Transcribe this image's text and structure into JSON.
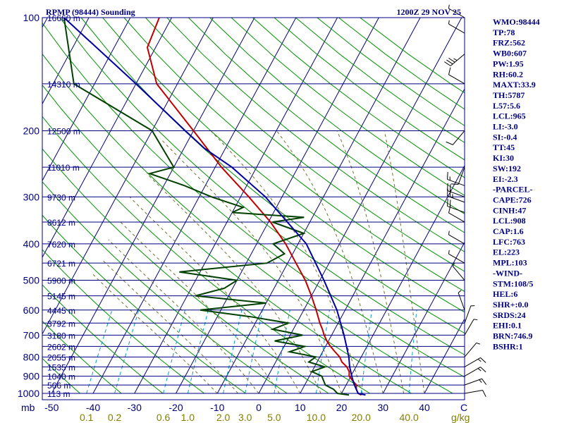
{
  "header": {
    "station": "RPMP (98444) Sounding",
    "time": "1200Z 29 NOV 25"
  },
  "chart_data": {
    "type": "skew-t",
    "pressure_levels": [
      100,
      200,
      300,
      400,
      500,
      600,
      700,
      800,
      900,
      1000
    ],
    "pressure_label_texts": [
      "100",
      "200",
      "300",
      "400",
      "500",
      "600",
      "700",
      "800",
      "900",
      "1000"
    ],
    "height_labels": [
      {
        "p": 100,
        "text": "16660 m"
      },
      {
        "p": 150,
        "text": "14310 m"
      },
      {
        "p": 200,
        "text": "12500 m"
      },
      {
        "p": 250,
        "text": "11010 m"
      },
      {
        "p": 300,
        "text": "9730 m"
      },
      {
        "p": 350,
        "text": "8612 m"
      },
      {
        "p": 400,
        "text": "7620 m"
      },
      {
        "p": 450,
        "text": "6721 m"
      },
      {
        "p": 500,
        "text": "5900 m"
      },
      {
        "p": 550,
        "text": "5145 m"
      },
      {
        "p": 600,
        "text": "4445 m"
      },
      {
        "p": 650,
        "text": "3792 m"
      },
      {
        "p": 700,
        "text": "3180 m"
      },
      {
        "p": 750,
        "text": "2602 m"
      },
      {
        "p": 800,
        "text": "2055 m"
      },
      {
        "p": 850,
        "text": "1535 m"
      },
      {
        "p": 900,
        "text": "1040 m"
      },
      {
        "p": 950,
        "text": "566 m"
      },
      {
        "p": 1000,
        "text": "113 m"
      }
    ],
    "x_axis_label": "mb",
    "temperature_ticks": [
      -50,
      -40,
      -30,
      -20,
      -10,
      0,
      10,
      20,
      30,
      40
    ],
    "temperature_tick_texts": [
      "-50",
      "-40",
      "-30",
      "-20",
      "-10",
      "0",
      "10",
      "20",
      "30",
      "40"
    ],
    "celsius_label": "C",
    "mixing_ratio_labels": [
      "0.1",
      "0.2",
      "0.6",
      "1.0",
      "2.0",
      "3.0",
      "5.0",
      "10.0",
      "20.0",
      "40.0"
    ],
    "mixing_ratio_unit": "g/kg",
    "series": [
      {
        "name": "temperature",
        "color": "#c00000",
        "points": [
          [
            1010,
            25
          ],
          [
            1000,
            24
          ],
          [
            975,
            23
          ],
          [
            950,
            22.5
          ],
          [
            925,
            21
          ],
          [
            900,
            19.6
          ],
          [
            875,
            19
          ],
          [
            850,
            17.8
          ],
          [
            825,
            16
          ],
          [
            800,
            14.8
          ],
          [
            775,
            13
          ],
          [
            750,
            11.2
          ],
          [
            725,
            9.6
          ],
          [
            700,
            8.2
          ],
          [
            675,
            7
          ],
          [
            650,
            5.6
          ],
          [
            600,
            3
          ],
          [
            550,
            0
          ],
          [
            500,
            -3.5
          ],
          [
            450,
            -8
          ],
          [
            400,
            -13
          ],
          [
            350,
            -19.5
          ],
          [
            300,
            -28
          ],
          [
            250,
            -38.5
          ],
          [
            200,
            -50
          ],
          [
            150,
            -65
          ],
          [
            120,
            -72
          ],
          [
            100,
            -73
          ]
        ]
      },
      {
        "name": "dewpoint",
        "color": "#004000",
        "points": [
          [
            1010,
            22
          ],
          [
            1000,
            19
          ],
          [
            975,
            17.5
          ],
          [
            950,
            15
          ],
          [
            925,
            14
          ],
          [
            900,
            13
          ],
          [
            875,
            10
          ],
          [
            850,
            12.5
          ],
          [
            825,
            8
          ],
          [
            800,
            9
          ],
          [
            775,
            2
          ],
          [
            750,
            5
          ],
          [
            725,
            -3
          ],
          [
            700,
            3
          ],
          [
            675,
            -5
          ],
          [
            650,
            -2
          ],
          [
            625,
            -12
          ],
          [
            600,
            -25
          ],
          [
            575,
            -10
          ],
          [
            550,
            -28
          ],
          [
            525,
            -22
          ],
          [
            500,
            -20
          ],
          [
            475,
            -35
          ],
          [
            450,
            -15
          ],
          [
            425,
            -12
          ],
          [
            400,
            -16
          ],
          [
            375,
            -10
          ],
          [
            350,
            -19
          ],
          [
            340,
            -12
          ],
          [
            330,
            -30
          ],
          [
            320,
            -28
          ],
          [
            300,
            -37
          ],
          [
            280,
            -45
          ],
          [
            260,
            -55
          ],
          [
            250,
            -50
          ],
          [
            200,
            -60
          ],
          [
            150,
            -85
          ],
          [
            100,
            -96
          ]
        ]
      },
      {
        "name": "parcel",
        "color": "#0000a0",
        "points": [
          [
            1010,
            26
          ],
          [
            1000,
            24
          ],
          [
            950,
            22
          ],
          [
            908,
            20.5
          ],
          [
            850,
            18.5
          ],
          [
            800,
            17
          ],
          [
            700,
            13
          ],
          [
            600,
            8
          ],
          [
            500,
            1
          ],
          [
            400,
            -8
          ],
          [
            300,
            -24
          ],
          [
            250,
            -36
          ],
          [
            223,
            -45
          ],
          [
            200,
            -52
          ],
          [
            150,
            -70
          ],
          [
            100,
            -96
          ]
        ]
      }
    ],
    "wind_barbs": [
      {
        "p": 1000,
        "dir": 80,
        "spd": 10
      },
      {
        "p": 950,
        "dir": 70,
        "spd": 15
      },
      {
        "p": 900,
        "dir": 60,
        "spd": 15
      },
      {
        "p": 850,
        "dir": 60,
        "spd": 15
      },
      {
        "p": 800,
        "dir": 40,
        "spd": 5
      },
      {
        "p": 700,
        "dir": 30,
        "spd": 5
      },
      {
        "p": 650,
        "dir": 20,
        "spd": 5
      },
      {
        "p": 600,
        "dir": 340,
        "spd": 5
      },
      {
        "p": 500,
        "dir": 320,
        "spd": 5
      },
      {
        "p": 450,
        "dir": 300,
        "spd": 5
      },
      {
        "p": 400,
        "dir": 300,
        "spd": 5
      },
      {
        "p": 350,
        "dir": 300,
        "spd": 10
      },
      {
        "p": 330,
        "dir": 290,
        "spd": 20
      },
      {
        "p": 310,
        "dir": 290,
        "spd": 25
      },
      {
        "p": 300,
        "dir": 290,
        "spd": 20
      },
      {
        "p": 280,
        "dir": 290,
        "spd": 15
      },
      {
        "p": 250,
        "dir": 200,
        "spd": 10
      },
      {
        "p": 200,
        "dir": 220,
        "spd": 10
      },
      {
        "p": 150,
        "dir": 300,
        "spd": 10
      },
      {
        "p": 125,
        "dir": 230,
        "spd": 35
      },
      {
        "p": 110,
        "dir": 300,
        "spd": 5
      },
      {
        "p": 100,
        "dir": 300,
        "spd": 5
      }
    ]
  },
  "indices": [
    "WMO:98444",
    "TP:78",
    "FRZ:562",
    "WB0:607",
    "PW:1.95",
    "RH:60.2",
    "MAXT:33.9",
    "TH:5787",
    "L57:5.6",
    "LCL:965",
    "LI:-3.0",
    "SI:-0.4",
    "TT:45",
    "KI:30",
    "SW:192",
    "EI:-2.3",
    "-PARCEL-",
    "CAPE:726",
    "CINH:47",
    "LCL:908",
    "CAP:1.6",
    "LFC:763",
    "EL:223",
    "MPL:103",
    "-WIND-",
    "STM:108/5",
    "HEL:6",
    "SHR+:0.0",
    "SRDS:24",
    "EHI:0.1",
    "BRN:746.9",
    "BSHR:1"
  ]
}
